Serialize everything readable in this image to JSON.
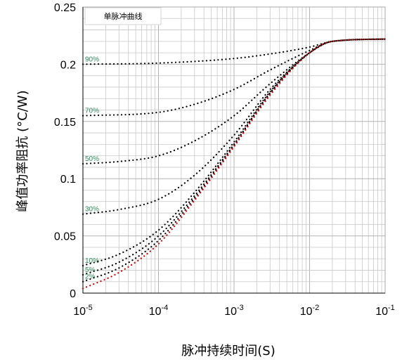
{
  "chart_data": {
    "type": "line",
    "xscale": "log",
    "xlim": [
      1e-05,
      0.1
    ],
    "ylim": [
      0,
      0.25
    ],
    "xlabel": "脉冲持续时间(S)",
    "ylabel": "峰值功率阻抗 (°C/W)",
    "legend_text": "单脉冲曲线",
    "legend_placement": "top-left",
    "grid": true,
    "x_ticks": [
      {
        "base": "10",
        "exp": "-5",
        "value": 1e-05
      },
      {
        "base": "10",
        "exp": "-4",
        "value": 0.0001
      },
      {
        "base": "10",
        "exp": "-3",
        "value": 0.001
      },
      {
        "base": "10",
        "exp": "-2",
        "value": 0.01
      },
      {
        "base": "10",
        "exp": "-1",
        "value": 0.1
      }
    ],
    "y_ticks": [
      {
        "label": "0",
        "value": 0
      },
      {
        "label": "0.05",
        "value": 0.05
      },
      {
        "label": "0.1",
        "value": 0.1
      },
      {
        "label": "0.15",
        "value": 0.15
      },
      {
        "label": "0.2",
        "value": 0.2
      },
      {
        "label": "0.25",
        "value": 0.25
      }
    ],
    "colors": {
      "duty_series": "#000000",
      "single_pulse": "#e00000",
      "duty_labels": "#2e8b57",
      "grid": "#c8c8c8",
      "axis": "#000000"
    },
    "series": [
      {
        "name": "90%",
        "color": "#000000",
        "x": [
          1e-05,
          0.0001,
          0.001,
          0.003,
          0.01,
          0.02,
          0.1
        ],
        "y": [
          0.2,
          0.201,
          0.205,
          0.209,
          0.215,
          0.22,
          0.222
        ]
      },
      {
        "name": "70%",
        "color": "#000000",
        "x": [
          1e-05,
          0.0001,
          0.0003,
          0.001,
          0.003,
          0.01,
          0.02,
          0.1
        ],
        "y": [
          0.155,
          0.158,
          0.165,
          0.178,
          0.195,
          0.212,
          0.22,
          0.222
        ]
      },
      {
        "name": "50%",
        "color": "#000000",
        "x": [
          1e-05,
          3e-05,
          0.0001,
          0.0003,
          0.001,
          0.003,
          0.01,
          0.02,
          0.1
        ],
        "y": [
          0.113,
          0.115,
          0.12,
          0.133,
          0.155,
          0.183,
          0.21,
          0.22,
          0.222
        ]
      },
      {
        "name": "30%",
        "color": "#000000",
        "x": [
          1e-05,
          3e-05,
          0.0001,
          0.0003,
          0.001,
          0.003,
          0.01,
          0.02,
          0.1
        ],
        "y": [
          0.069,
          0.073,
          0.082,
          0.103,
          0.138,
          0.178,
          0.21,
          0.22,
          0.222
        ]
      },
      {
        "name": "10%",
        "color": "#000000",
        "x": [
          1e-05,
          3e-05,
          0.0001,
          0.0003,
          0.001,
          0.003,
          0.01,
          0.02,
          0.1
        ],
        "y": [
          0.024,
          0.034,
          0.055,
          0.088,
          0.132,
          0.176,
          0.21,
          0.22,
          0.222
        ]
      },
      {
        "name": "5%",
        "color": "#000000",
        "x": [
          1e-05,
          3e-05,
          0.0001,
          0.0003,
          0.001,
          0.003,
          0.01,
          0.02,
          0.1
        ],
        "y": [
          0.016,
          0.027,
          0.05,
          0.085,
          0.13,
          0.175,
          0.21,
          0.22,
          0.222
        ]
      },
      {
        "name": "2%",
        "color": "#000000",
        "x": [
          1e-05,
          3e-05,
          0.0001,
          0.0003,
          0.001,
          0.003,
          0.01,
          0.02,
          0.1
        ],
        "y": [
          0.01,
          0.022,
          0.046,
          0.083,
          0.129,
          0.174,
          0.21,
          0.22,
          0.222
        ]
      },
      {
        "name": "",
        "color": "#e00000",
        "x": [
          1e-05,
          3e-05,
          0.0001,
          0.0003,
          0.001,
          0.003,
          0.01,
          0.02,
          0.1
        ],
        "y": [
          0.004,
          0.018,
          0.043,
          0.081,
          0.128,
          0.173,
          0.21,
          0.22,
          0.222
        ]
      }
    ]
  }
}
